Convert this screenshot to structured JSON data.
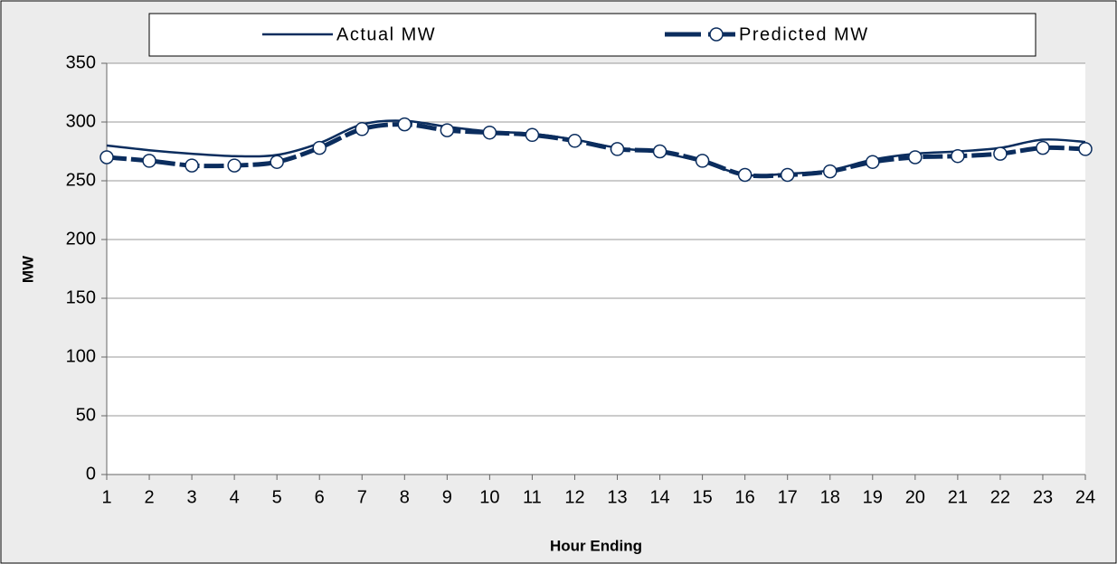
{
  "chart_data": {
    "type": "line",
    "xlabel": "Hour Ending",
    "ylabel": "MW",
    "x": [
      1,
      2,
      3,
      4,
      5,
      6,
      7,
      8,
      9,
      10,
      11,
      12,
      13,
      14,
      15,
      16,
      17,
      18,
      19,
      20,
      21,
      22,
      23,
      24
    ],
    "series": [
      {
        "name": "Actual MW",
        "color": "#0b2d5e",
        "values": [
          280,
          276,
          273,
          271,
          272,
          282,
          298,
          301,
          296,
          292,
          290,
          285,
          278,
          274,
          266,
          255,
          256,
          259,
          268,
          273,
          275,
          278,
          285,
          283
        ]
      },
      {
        "name": "Predicted MW",
        "color": "#0b2d5e",
        "values": [
          270,
          267,
          263,
          263,
          266,
          278,
          294,
          298,
          293,
          291,
          289,
          284,
          277,
          275,
          267,
          255,
          255,
          258,
          266,
          270,
          271,
          273,
          278,
          277
        ]
      }
    ],
    "xlim": [
      1,
      24
    ],
    "xticks": [
      1,
      2,
      3,
      4,
      5,
      6,
      7,
      8,
      9,
      10,
      11,
      12,
      13,
      14,
      15,
      16,
      17,
      18,
      19,
      20,
      21,
      22,
      23,
      24
    ],
    "ylim": [
      0,
      350
    ],
    "yticks": [
      0,
      50,
      100,
      150,
      200,
      250,
      300,
      350
    ],
    "grid": true,
    "legend": "top"
  }
}
